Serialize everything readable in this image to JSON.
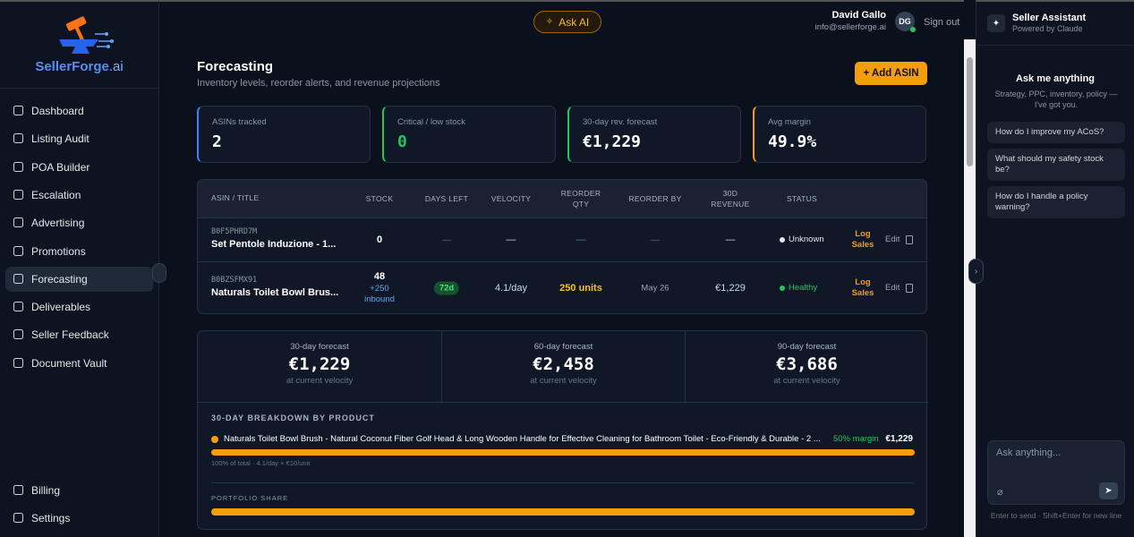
{
  "brand": {
    "name": "SellerForge",
    "suffix": ".ai"
  },
  "nav": {
    "items": [
      "Dashboard",
      "Listing Audit",
      "POA Builder",
      "Escalation",
      "Advertising",
      "Promotions",
      "Forecasting",
      "Deliverables",
      "Seller Feedback",
      "Document Vault"
    ],
    "active": 6,
    "footer": [
      "Billing",
      "Settings"
    ]
  },
  "topbar": {
    "ask_ai": "Ask AI",
    "user_name": "David Gallo",
    "user_email": "info@sellerforge.ai",
    "initials": "DG",
    "sign_out": "Sign out"
  },
  "page": {
    "title": "Forecasting",
    "subtitle": "Inventory levels, reorder alerts, and revenue projections",
    "add_button": "+ Add ASIN"
  },
  "stats": [
    {
      "label": "ASINs tracked",
      "value": "2",
      "color": "#3b82f6"
    },
    {
      "label": "Critical / low stock",
      "value": "0",
      "color": "#22c55e"
    },
    {
      "label": "30-day rev. forecast",
      "value": "€1,229",
      "color": "#22c55e"
    },
    {
      "label": "Avg margin",
      "value": "49.9%",
      "color": "#f59e0b"
    }
  ],
  "table": {
    "headers": [
      "ASIN / TITLE",
      "STOCK",
      "DAYS LEFT",
      "VELOCITY",
      "REORDER QTY",
      "REORDER BY",
      "30D REVENUE",
      "STATUS"
    ],
    "rows": [
      {
        "asin": "B0F5PHRD7M",
        "title": "Set Pentole Induzione - 1...",
        "stock": "0",
        "inbound": "",
        "days_left": "—",
        "velocity": "—",
        "reorder_qty": "—",
        "reorder_by": "—",
        "revenue": "—",
        "status": "Unknown",
        "status_color": "#e5e7eb",
        "log": "Log Sales",
        "edit": "Edit"
      },
      {
        "asin": "B0BZSFMX91",
        "title": "Naturals Toilet Bowl Brus...",
        "stock": "48",
        "inbound": "+250 inbound",
        "days_left": "72d",
        "velocity": "4.1/day",
        "reorder_qty": "250 units",
        "reorder_by": "May 26",
        "revenue": "€1,229",
        "status": "Healthy",
        "status_color": "#22c55e",
        "log": "Log Sales",
        "edit": "Edit"
      }
    ]
  },
  "forecast": [
    {
      "label": "30-day forecast",
      "value": "€1,229",
      "note": "at current velocity"
    },
    {
      "label": "60-day forecast",
      "value": "€2,458",
      "note": "at current velocity"
    },
    {
      "label": "90-day forecast",
      "value": "€3,686",
      "note": "at current velocity"
    }
  ],
  "breakdown": {
    "title": "30-DAY BREAKDOWN BY PRODUCT",
    "item": {
      "name": "Naturals Toilet Bowl Brush - Natural Coconut Fiber Golf Head & Long Wooden Handle for Effective Cleaning for Bathroom Toilet - Eco-Friendly & Durable - 2 ...",
      "margin": "50% margin",
      "value": "€1,229",
      "note": "100% of total · 4.1/day × €10/unit"
    },
    "portfolio": "PORTFOLIO SHARE"
  },
  "assistant": {
    "title": "Seller Assistant",
    "subtitle": "Powered by Claude",
    "heading": "Ask me anything",
    "intro": "Strategy, PPC, inventory, policy — I've got you.",
    "suggestions": [
      "How do I improve my ACoS?",
      "What should my safety stock be?",
      "How do I handle a policy warning?"
    ],
    "placeholder": "Ask anything...",
    "hint": "Enter to send · Shift+Enter for new line"
  }
}
